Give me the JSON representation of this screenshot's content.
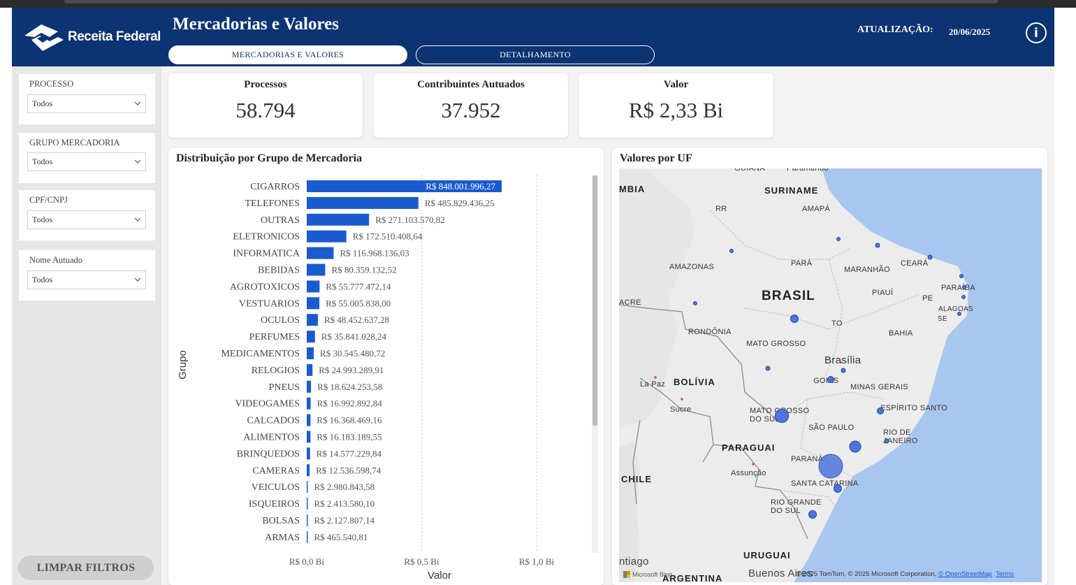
{
  "header": {
    "brand": "Receita Federal",
    "title": "Mercadorias e Valores",
    "tabs": [
      {
        "label": "MERCADORIAS E VALORES",
        "active": true
      },
      {
        "label": "DETALHAMENTO",
        "active": false
      }
    ],
    "update_label": "ATUALIZAÇÃO:",
    "update_date": "20/06/2025",
    "info_icon": "info-icon"
  },
  "filters": [
    {
      "label": "PROCESSO",
      "value": "Todos"
    },
    {
      "label": "GRUPO MERCADORIA",
      "value": "Todos"
    },
    {
      "label": "CPF/CNPJ",
      "value": "Todos"
    },
    {
      "label": "Nome Autuado",
      "value": "Todos"
    }
  ],
  "clear_button": "LIMPAR FILTROS",
  "kpis": [
    {
      "title": "Processos",
      "value": "58.794"
    },
    {
      "title": "Contribuintes Autuados",
      "value": "37.952"
    },
    {
      "title": "Valor",
      "value": "R$ 2,33 Bi"
    }
  ],
  "colors": {
    "header": "#0c3372",
    "bar": "#1a5bd0",
    "bubble": "#4f74e0"
  },
  "chart_data": {
    "type": "bar",
    "orientation": "horizontal",
    "title": "Distribuição por Grupo de Mercadoria",
    "xlabel": "Valor",
    "ylabel": "Grupo",
    "xlim": [
      0,
      1000000000
    ],
    "xticks": [
      {
        "value": 0,
        "label": "R$ 0,0 Bi"
      },
      {
        "value": 500000000,
        "label": "R$ 0,5 Bi"
      },
      {
        "value": 1000000000,
        "label": "R$ 1,0 Bi"
      }
    ],
    "categories": [
      "CIGARROS",
      "TELEFONES",
      "OUTRAS",
      "ELETRONICOS",
      "INFORMATICA",
      "BEBIDAS",
      "AGROTOXICOS",
      "VESTUARIOS",
      "OCULOS",
      "PERFUMES",
      "MEDICAMENTOS",
      "RELOGIOS",
      "PNEUS",
      "VIDEOGAMES",
      "CALCADOS",
      "ALIMENTOS",
      "BRINQUEDOS",
      "CAMERAS",
      "VEICULOS",
      "ISQUEIROS",
      "BOLSAS",
      "ARMAS"
    ],
    "values": [
      848001996.27,
      485829436.25,
      271103570.82,
      172510408.64,
      116968136.03,
      80359132.52,
      55777472.14,
      55005838.0,
      48452637.28,
      35841028.24,
      30545480.72,
      24993289.91,
      18624253.58,
      16992892.84,
      16368469.16,
      16183189.55,
      14577229.84,
      12536598.74,
      2980843.58,
      2413580.1,
      2127807.14,
      465540.81
    ],
    "labels": [
      "R$ 848.001.996,27",
      "R$ 485.829.436,25",
      "R$ 271.103.570,82",
      "R$ 172.510.408,64",
      "R$ 116.968.136,03",
      "R$ 80.359.132,52",
      "R$ 55.777.472,14",
      "R$ 55.005.838,00",
      "R$ 48.452.637,28",
      "R$ 35.841.028,24",
      "R$ 30.545.480,72",
      "R$ 24.993.289,91",
      "R$ 18.624.253,58",
      "R$ 16.992.892,84",
      "R$ 16.368.469,16",
      "R$ 16.183.189,55",
      "R$ 14.577.229,84",
      "R$ 12.536.598,74",
      "R$ 2.980.843,58",
      "R$ 2.413.580,10",
      "R$ 2.127.807,14",
      "R$ 465.540,81"
    ],
    "grid": true
  },
  "map": {
    "title": "Valores por UF",
    "labels": {
      "brasil": "BRASIL",
      "brasilia": "Brasília",
      "bolivia": "BOLÍVIA",
      "paraguai": "PARAGUAI",
      "chile": "CHILE",
      "uruguai": "URUGUAI",
      "argentina": "ARGENTINA",
      "suriname": "SURINAME",
      "guiana": "GUIANA",
      "paramaribo": "Paramaribo",
      "mbia": "MBIA",
      "rr": "RR",
      "amapa": "AMAPÁ",
      "amazonas": "AMAZONAS",
      "para": "PARÁ",
      "maranhao": "MARANHÃO",
      "ceara": "CEARÁ",
      "piaui": "PIAUÍ",
      "paraiba": "PARAÍBA",
      "pe": "PE",
      "alagoas": "ALAGOAS",
      "se": "SE",
      "acre": "ACRE",
      "rondonia": "RONDÔNIA",
      "to": "TO",
      "bahia": "BAHIA",
      "mato_grosso": "MATO GROSSO",
      "goias": "GOIÁS",
      "minas": "MINAS GERAIS",
      "la_paz": "La Paz",
      "sucre": "Sucre",
      "ms": "MATO GROSSO DO SUL",
      "es": "ESPÍRITO SANTO",
      "sp": "SÃO PAULO",
      "rj": "RIO DE JANEIRO",
      "parana": "PARANÁ",
      "assuncao": "Assunção",
      "sc": "SANTA CATARINA",
      "rs": "RIO GRANDE DO SUL",
      "santiago": "ntiago",
      "buenos_aires": "Buenos Aires"
    },
    "attribution": "© 2025 TomTom, © 2025 Microsoft Corporation, ",
    "osm": "© OpenStreetMap",
    "terms": "Terms",
    "bing": "Microsoft Bing"
  }
}
